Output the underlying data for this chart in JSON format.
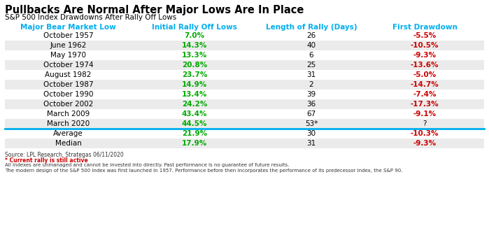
{
  "title": "Pullbacks Are Normal After Major Lows Are In Place",
  "subtitle": "S&P 500 Index Drawdowns After Rally Off Lows",
  "col_headers": [
    "Major Bear Market Low",
    "Initial Rally Off Lows",
    "Length of Rally (Days)",
    "First Drawdown"
  ],
  "rows": [
    [
      "October 1957",
      "7.0%",
      "26",
      "-5.5%"
    ],
    [
      "June 1962",
      "14.3%",
      "40",
      "-10.5%"
    ],
    [
      "May 1970",
      "13.3%",
      "6",
      "-9.3%"
    ],
    [
      "October 1974",
      "20.8%",
      "25",
      "-13.6%"
    ],
    [
      "August 1982",
      "23.7%",
      "31",
      "-5.0%"
    ],
    [
      "October 1987",
      "14.9%",
      "2",
      "-14.7%"
    ],
    [
      "October 1990",
      "13.4%",
      "39",
      "-7.4%"
    ],
    [
      "October 2002",
      "24.2%",
      "36",
      "-17.3%"
    ],
    [
      "March 2009",
      "43.4%",
      "67",
      "-9.1%"
    ],
    [
      "March 2020",
      "44.5%",
      "53*",
      "?"
    ]
  ],
  "summary_rows": [
    [
      "Average",
      "21.9%",
      "30",
      "-10.3%"
    ],
    [
      "Median",
      "17.9%",
      "31",
      "-9.3%"
    ]
  ],
  "footer_lines": [
    "Source: LPL Research, Strategas 06/11/2020",
    "* Current rally is still active",
    "All indexes are unmanaged and cannot be invested into directly. Past performance is no guarantee of future results.",
    "The modern design of the S&P 500 Index was first launched in 1957. Performance before then incorporates the performance of its predecessor index, the S&P 90."
  ],
  "col_header_color": "#00AEEF",
  "title_color": "#000000",
  "subtitle_color": "#000000",
  "rally_color": "#00AA00",
  "drawdown_color": "#CC0000",
  "neutral_color": "#000000",
  "row_bg_even": "#EBEBEB",
  "row_bg_odd": "#FFFFFF",
  "divider_color": "#00AEEF",
  "footer_note_color": "#CC0000"
}
